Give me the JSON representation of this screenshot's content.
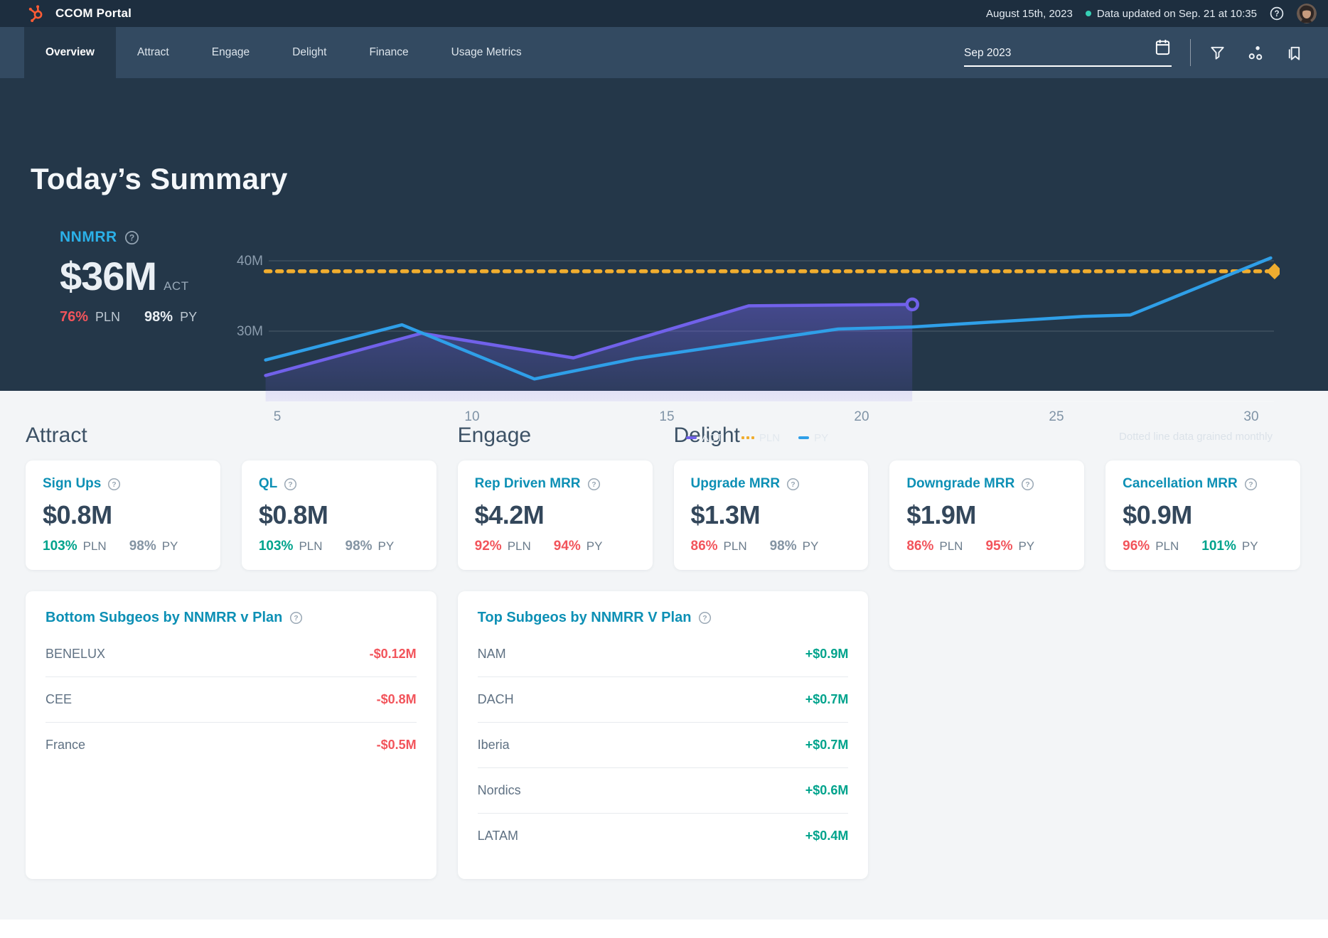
{
  "topbar": {
    "title": "CCOM Portal",
    "date": "August 15th, 2023",
    "updated": "Data updated on Sep. 21 at 10:35"
  },
  "navbar": {
    "tabs": [
      "Overview",
      "Attract",
      "Engage",
      "Delight",
      "Finance",
      "Usage Metrics"
    ],
    "active_tab": "Overview",
    "date_value": "Sep 2023"
  },
  "summary": {
    "title": "Today’s Summary",
    "stat": {
      "label": "NNMRR",
      "value": "$36M",
      "value_tag": "ACT",
      "pln_pct": "76%",
      "pln_label": "PLN",
      "pln_status": "bad",
      "py_pct": "98%",
      "py_label": "PY",
      "py_status": "light"
    },
    "note": "Dotted line data grained monthly"
  },
  "chart_data": {
    "type": "line",
    "x_unit": "day of month",
    "x_ticks": [
      5,
      10,
      15,
      20,
      25,
      30
    ],
    "y_gridlines": [
      {
        "label": "30M",
        "value": 30
      },
      {
        "label": "40M",
        "value": 40
      }
    ],
    "ylim": [
      20,
      42
    ],
    "series": [
      {
        "name": "ACT",
        "color": "#7161ea",
        "style": "solid",
        "area_fill": true,
        "end_marker": "open-circle",
        "points": [
          [
            4.7,
            23.7
          ],
          [
            8.7,
            29.7
          ],
          [
            12.6,
            26.2
          ],
          [
            17.1,
            33.6
          ],
          [
            21.3,
            33.8
          ]
        ]
      },
      {
        "name": "PLN",
        "color": "#f0ad2f",
        "style": "dotted",
        "end_marker": "diamond",
        "points": [
          [
            4.7,
            38.5
          ],
          [
            30.6,
            38.5
          ]
        ]
      },
      {
        "name": "PY",
        "color": "#2f9fe8",
        "style": "solid",
        "points": [
          [
            4.7,
            25.9
          ],
          [
            8.2,
            30.9
          ],
          [
            11.6,
            23.2
          ],
          [
            14.2,
            26.1
          ],
          [
            17.9,
            29.1
          ],
          [
            19.4,
            30.3
          ],
          [
            21.3,
            30.6
          ],
          [
            25.7,
            32.1
          ],
          [
            26.9,
            32.3
          ],
          [
            30.5,
            40.4
          ]
        ]
      }
    ],
    "legend": [
      {
        "label": "ACT",
        "swatch": "dash",
        "color": "#7161ea"
      },
      {
        "label": "PLN",
        "swatch": "dots",
        "color": "#f0ad2f"
      },
      {
        "label": "PY",
        "swatch": "dash",
        "color": "#2f9fe8"
      }
    ]
  },
  "sections": [
    {
      "title": "Attract",
      "col": 1
    },
    {
      "title": "Engage",
      "col": 3
    },
    {
      "title": "Delight",
      "col": 4
    }
  ],
  "labels": {
    "pln": "PLN",
    "py": "PY"
  },
  "metric_cards": [
    {
      "title": "Sign Ups",
      "value": "$0.8M",
      "pln": "103%",
      "pln_status": "good",
      "py": "98%",
      "py_status": "neutral"
    },
    {
      "title": "QL",
      "value": "$0.8M",
      "pln": "103%",
      "pln_status": "good",
      "py": "98%",
      "py_status": "neutral"
    },
    {
      "title": "Rep Driven MRR",
      "value": "$4.2M",
      "pln": "92%",
      "pln_status": "bad",
      "py": "94%",
      "py_status": "bad"
    },
    {
      "title": "Upgrade MRR",
      "value": "$1.3M",
      "pln": "86%",
      "pln_status": "bad",
      "py": "98%",
      "py_status": "neutral"
    },
    {
      "title": "Downgrade MRR",
      "value": "$1.9M",
      "pln": "86%",
      "pln_status": "bad",
      "py": "95%",
      "py_status": "bad"
    },
    {
      "title": "Cancellation MRR",
      "value": "$0.9M",
      "pln": "96%",
      "pln_status": "bad",
      "py": "101%",
      "py_status": "good"
    }
  ],
  "subgeo_cards": [
    {
      "title": "Bottom Subgeos by NNMRR v Plan",
      "rows": [
        {
          "label": "BENELUX",
          "value": "-$0.12M",
          "status": "bad"
        },
        {
          "label": "CEE",
          "value": "-$0.8M",
          "status": "bad"
        },
        {
          "label": "France",
          "value": "-$0.5M",
          "status": "bad"
        }
      ]
    },
    {
      "title": "Top Subgeos by NNMRR V Plan",
      "rows": [
        {
          "label": "NAM",
          "value": "+$0.9M",
          "status": "good"
        },
        {
          "label": "DACH",
          "value": "+$0.7M",
          "status": "good"
        },
        {
          "label": "Iberia",
          "value": "+$0.7M",
          "status": "good"
        },
        {
          "label": "Nordics",
          "value": "+$0.6M",
          "status": "good"
        },
        {
          "label": "LATAM",
          "value": "+$0.4M",
          "status": "good"
        }
      ]
    }
  ],
  "colors": {
    "topbar_bg": "#1d2e3f",
    "navbar_bg": "#334a61",
    "summary_bg": "#243749",
    "accent_cyan": "#2bb0e8",
    "card_title_blue": "#0d90b5",
    "bad_red": "#f2545b",
    "good_green": "#00a38c",
    "act_purple": "#7161ea",
    "pln_yellow": "#f0ad2f",
    "py_blue": "#2f9fe8",
    "updated_dot": "#36d0b5",
    "logo_orange": "#ff5c35"
  }
}
